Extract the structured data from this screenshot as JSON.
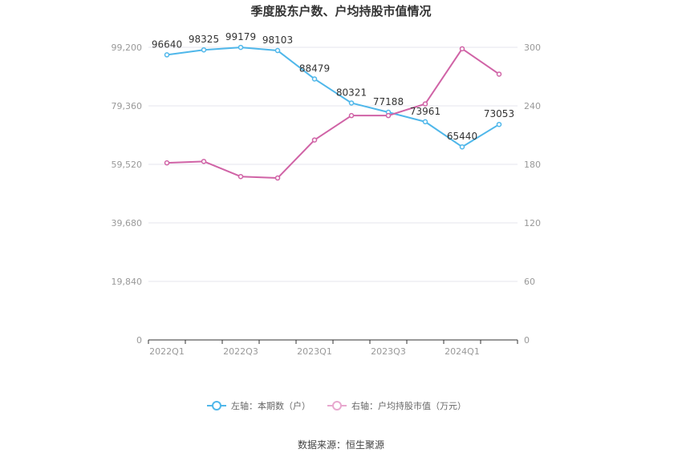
{
  "chart_data": {
    "type": "line",
    "title": "季度股东户数、户均持股市值情况",
    "x": [
      "2022Q1",
      "2022Q2",
      "2022Q3",
      "2022Q4",
      "2023Q1",
      "2023Q2",
      "2023Q3",
      "2023Q4",
      "2024Q1",
      "2024Q2"
    ],
    "x_tick_labels": [
      "2022Q1",
      "2022Q3",
      "2023Q1",
      "2023Q3",
      "2024Q1"
    ],
    "left_axis": {
      "ylim": [
        0,
        99200
      ],
      "ticks": [
        "0",
        "19,840",
        "39,680",
        "59,520",
        "79,360",
        "99,200"
      ]
    },
    "right_axis": {
      "ylim": [
        0,
        300
      ],
      "ticks": [
        "0",
        "60",
        "120",
        "180",
        "240",
        "300"
      ]
    },
    "grid": true,
    "legend_position": "bottom",
    "series": [
      {
        "name": "左轴：本期数（户）",
        "axis": "left",
        "color": "#4fb7ea",
        "values": [
          96640,
          98325,
          99179,
          98103,
          88479,
          80321,
          77188,
          73961,
          65440,
          73053
        ],
        "labels": [
          "96640",
          "98325",
          "99179",
          "98103",
          "88479",
          "80321",
          "77188",
          "73961",
          "65440",
          "73053"
        ]
      },
      {
        "name": "右轴：户均持股市值（万元）",
        "axis": "right",
        "color": "#d063a6",
        "values": [
          181.5,
          183.0,
          167.5,
          166.0,
          205.0,
          230.0,
          230.0,
          242.0,
          298.5,
          272.5
        ]
      }
    ],
    "source": "数据来源：恒生聚源"
  }
}
